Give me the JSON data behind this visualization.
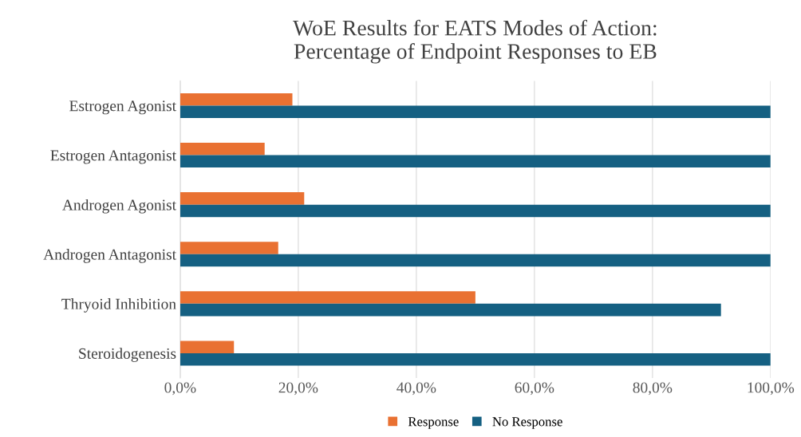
{
  "chart_data": {
    "type": "bar",
    "orientation": "horizontal",
    "title": "WoE Results for EATS Modes of Action:\nPercentage of Endpoint Responses to EB",
    "categories": [
      "Estrogen Agonist",
      "Estrogen Antagonist",
      "Androgen Agonist",
      "Androgen Antagonist",
      "Thryoid Inhibition",
      "Steroidogenesis"
    ],
    "series": [
      {
        "name": "Response",
        "color": "#e97132",
        "values": [
          19.0,
          14.3,
          21.0,
          16.6,
          50.0,
          9.1
        ]
      },
      {
        "name": "No Response",
        "color": "#156082",
        "values": [
          100,
          100,
          100,
          100,
          91.6,
          100
        ]
      }
    ],
    "xlim": [
      0,
      100
    ],
    "xticks": [
      {
        "value": 0,
        "label": "0,0%"
      },
      {
        "value": 20,
        "label": "20,0%"
      },
      {
        "value": 40,
        "label": "40,0%"
      },
      {
        "value": 60,
        "label": "60,0%"
      },
      {
        "value": 80,
        "label": "80,0%"
      },
      {
        "value": 100,
        "label": "100,0%"
      }
    ],
    "grid": "x",
    "legend": "bottom"
  }
}
